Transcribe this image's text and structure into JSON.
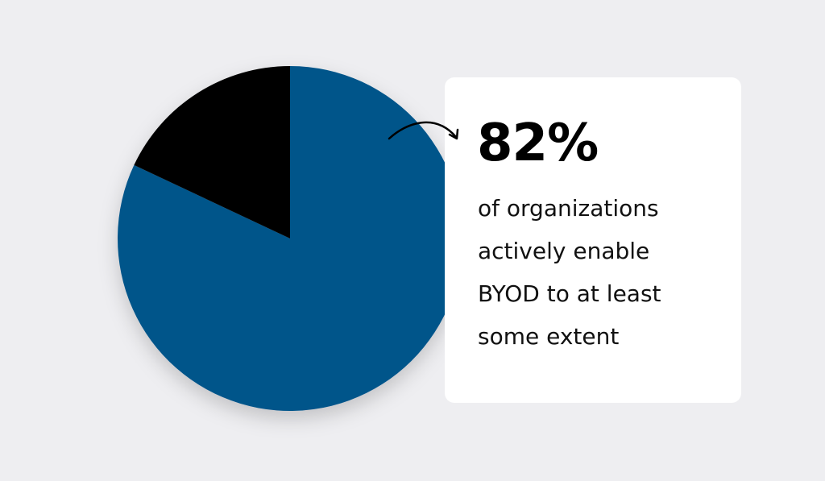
{
  "chart_data": {
    "type": "pie",
    "title": "",
    "slices": [
      {
        "label": "Actively enable BYOD",
        "value": 82,
        "color": "#03548a"
      },
      {
        "label": "Other",
        "value": 18,
        "color": "#000000"
      }
    ]
  },
  "callout": {
    "value": "82%",
    "lines": [
      "of organizations",
      "actively enable",
      "BYOD to at least",
      "some extent"
    ]
  }
}
